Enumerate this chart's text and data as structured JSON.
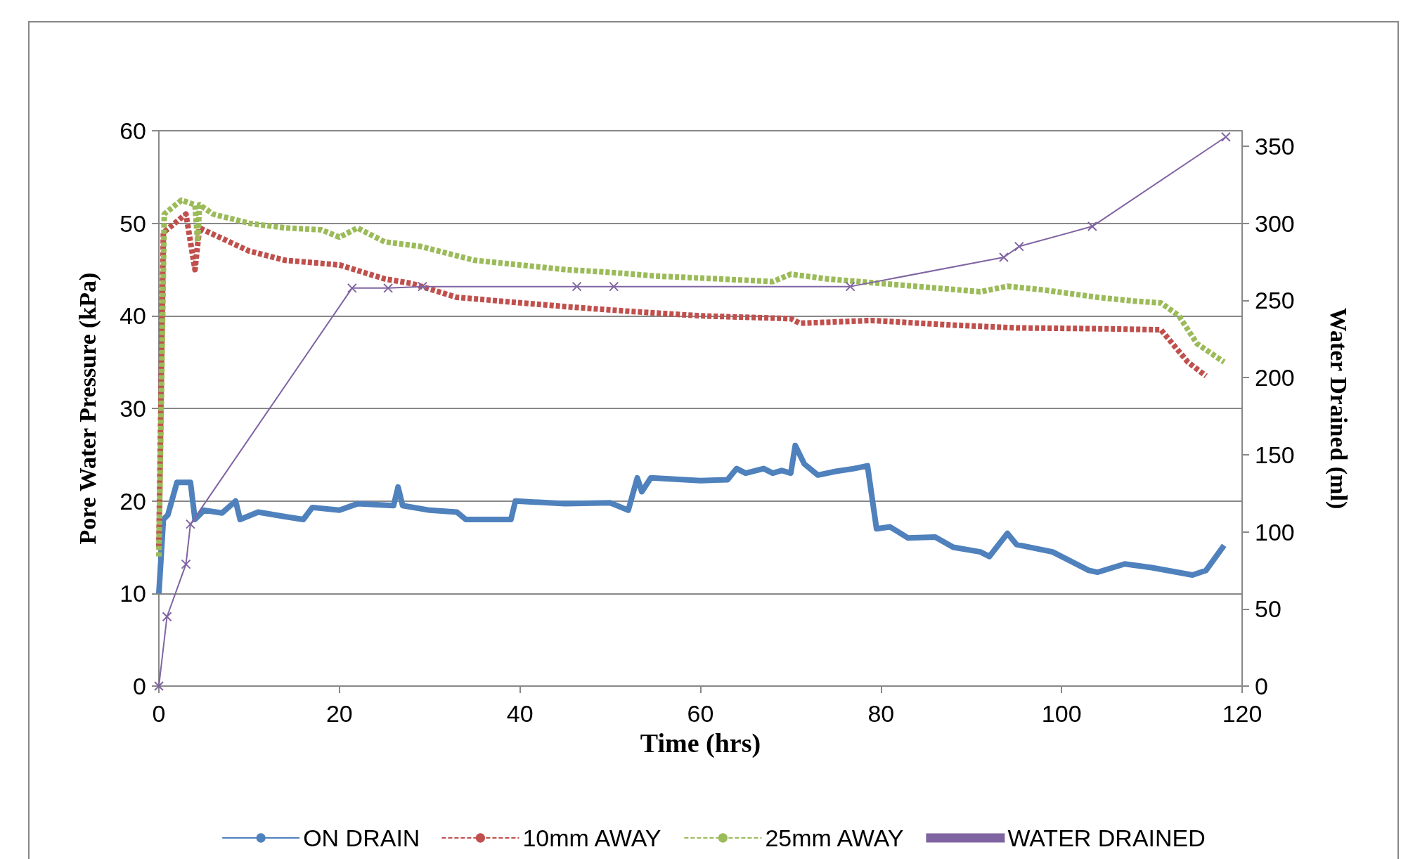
{
  "chart_data": {
    "type": "line",
    "xlabel": "Time (hrs)",
    "ylabel": "Pore Water Pressure (kPa)",
    "y2label": "Water Drained (ml)",
    "xlim": [
      0,
      120
    ],
    "xticks": [
      0,
      20,
      40,
      60,
      80,
      100,
      120
    ],
    "ylim": [
      0,
      60
    ],
    "yticks": [
      0,
      10,
      20,
      30,
      40,
      50,
      60
    ],
    "y2lim": [
      0,
      360
    ],
    "y2ticks": [
      0,
      50,
      100,
      150,
      200,
      250,
      300,
      350
    ],
    "grid": "y",
    "legend": "bottom",
    "series": [
      {
        "name": "ON DRAIN",
        "color": "#4f81bd",
        "line_style": "solid",
        "marker": "none",
        "x": [
          0,
          0.5,
          1,
          2,
          3.5,
          4,
          5,
          7,
          8.5,
          9,
          11,
          14,
          16,
          17,
          20,
          22,
          26,
          26.5,
          27,
          30,
          33,
          34,
          39,
          39.5,
          45,
          50,
          52,
          53,
          53.5,
          54.5,
          60,
          63,
          64,
          65,
          67,
          68,
          69,
          70,
          70.5,
          71.5,
          73,
          75,
          77,
          78.5,
          79.5,
          81,
          83,
          86,
          88,
          91,
          92,
          94,
          95,
          99,
          103,
          104,
          107,
          110,
          114.5,
          116,
          118
        ],
        "values": [
          10,
          18,
          18.5,
          22,
          22,
          18,
          19,
          18.7,
          20,
          18,
          18.8,
          18.3,
          18,
          19.3,
          19,
          19.7,
          19.5,
          21.5,
          19.5,
          19,
          18.8,
          18,
          18,
          20,
          19.7,
          19.8,
          19,
          22.5,
          21,
          22.5,
          22.2,
          22.3,
          23.5,
          23,
          23.5,
          23,
          23.3,
          23,
          26,
          24,
          22.8,
          23.2,
          23.5,
          23.8,
          17,
          17.2,
          16,
          16.1,
          15,
          14.5,
          14,
          16.5,
          15.3,
          14.5,
          12.5,
          12.3,
          13.2,
          12.8,
          12,
          12.5,
          15.2
        ]
      },
      {
        "name": "10mm AWAY",
        "color": "#c0504d",
        "line_style": "dashed",
        "marker": "none",
        "x": [
          0,
          0.5,
          3,
          4,
          4.5,
          10,
          14,
          20,
          25,
          28,
          33,
          45,
          52,
          60,
          70,
          71,
          79,
          88,
          95,
          105,
          111,
          114,
          116
        ],
        "values": [
          15,
          49,
          51,
          45,
          49.5,
          47,
          46,
          45.5,
          44,
          43.5,
          42,
          41,
          40.5,
          40,
          39.7,
          39.2,
          39.5,
          39,
          38.7,
          38.6,
          38.5,
          35,
          33.5
        ]
      },
      {
        "name": "25mm AWAY",
        "color": "#9bbb59",
        "line_style": "dashed",
        "marker": "none",
        "x": [
          0,
          0.6,
          2.5,
          4,
          4.3,
          4.5,
          6,
          10,
          14,
          18,
          20,
          22,
          25,
          29,
          35,
          40,
          45,
          50,
          55,
          62,
          68,
          70,
          74,
          80,
          91,
          94,
          98,
          104,
          108,
          111,
          113,
          115,
          118
        ],
        "values": [
          14,
          51,
          52.5,
          52,
          48,
          52,
          51,
          50,
          49.5,
          49.3,
          48.5,
          49.5,
          48,
          47.5,
          46,
          45.5,
          45,
          44.7,
          44.3,
          44,
          43.7,
          44.5,
          44,
          43.5,
          42.6,
          43.2,
          42.8,
          42,
          41.6,
          41.4,
          40,
          37,
          35
        ]
      },
      {
        "name": "WATER DRAINED",
        "color": "#8064a2",
        "line_style": "solid",
        "marker": "cross",
        "axis": "y2",
        "x": [
          0,
          0.9,
          3,
          3.5,
          21.4,
          25.4,
          29.2,
          46.3,
          50.4,
          76.6,
          93.6,
          95.3,
          103.4,
          118.2
        ],
        "values": [
          0,
          45,
          79,
          105,
          258,
          258,
          259,
          259,
          259,
          259,
          278,
          285,
          298,
          356
        ]
      }
    ]
  }
}
